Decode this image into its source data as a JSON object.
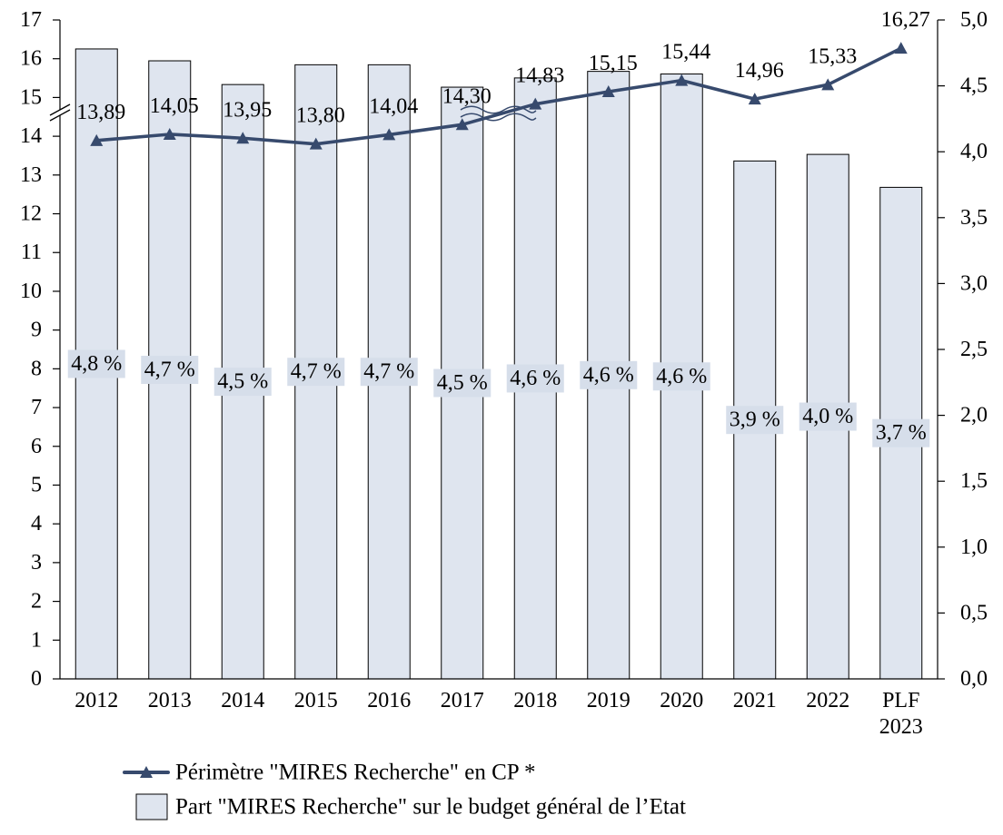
{
  "chart_data": {
    "type": "bar",
    "categories": [
      "2012",
      "2013",
      "2014",
      "2015",
      "2016",
      "2017",
      "2018",
      "2019",
      "2020",
      "2021",
      "2022",
      "PLF 2023"
    ],
    "series": [
      {
        "name": "Part \"MIRES Recherche\" sur le budget général de l’Etat",
        "type": "bar",
        "axis": "y_right",
        "values": [
          4.78,
          4.69,
          4.51,
          4.66,
          4.66,
          4.49,
          4.56,
          4.61,
          4.59,
          3.93,
          3.98,
          3.73
        ],
        "data_labels": [
          "4,8 %",
          "4,7 %",
          "4,5 %",
          "4,7 %",
          "4,7 %",
          "4,5 %",
          "4,6 %",
          "4,6 %",
          "4,6 %",
          "3,9 %",
          "4,0 %",
          "3,7 %"
        ]
      },
      {
        "name": "Périmètre \"MIRES Recherche\" en CP *",
        "type": "line",
        "axis": "y_left",
        "marker": "triangle",
        "values": [
          13.89,
          14.05,
          13.95,
          13.8,
          14.04,
          14.3,
          14.83,
          15.15,
          15.44,
          14.96,
          15.33,
          16.27
        ],
        "data_labels": [
          "13,89",
          "14,05",
          "13,95",
          "13,80",
          "14,04",
          "14,30",
          "14,83",
          "15,15",
          "15,44",
          "14,96",
          "15,33",
          "16,27"
        ]
      }
    ],
    "y_left": {
      "ylim": [
        0,
        17
      ],
      "tick_labels": [
        "0",
        "1",
        "2",
        "3",
        "4",
        "5",
        "6",
        "7",
        "8",
        "9",
        "10",
        "11",
        "12",
        "13",
        "14",
        "15",
        "16",
        "17"
      ],
      "axis_break": true
    },
    "y_right": {
      "ylim": [
        0,
        5
      ],
      "tick_labels": [
        "0,0",
        "0,5",
        "1,0",
        "1,5",
        "2,0",
        "2,5",
        "3,0",
        "3,5",
        "4,0",
        "4,5",
        "5,0"
      ]
    },
    "grid": false,
    "legend": "bottom-left"
  },
  "colors": {
    "line": "#374A6D",
    "bar_fill": "#DFE5EF",
    "bar_label_background": "#D6DEEA",
    "bar_border": "#000000",
    "axis": "#000000"
  }
}
